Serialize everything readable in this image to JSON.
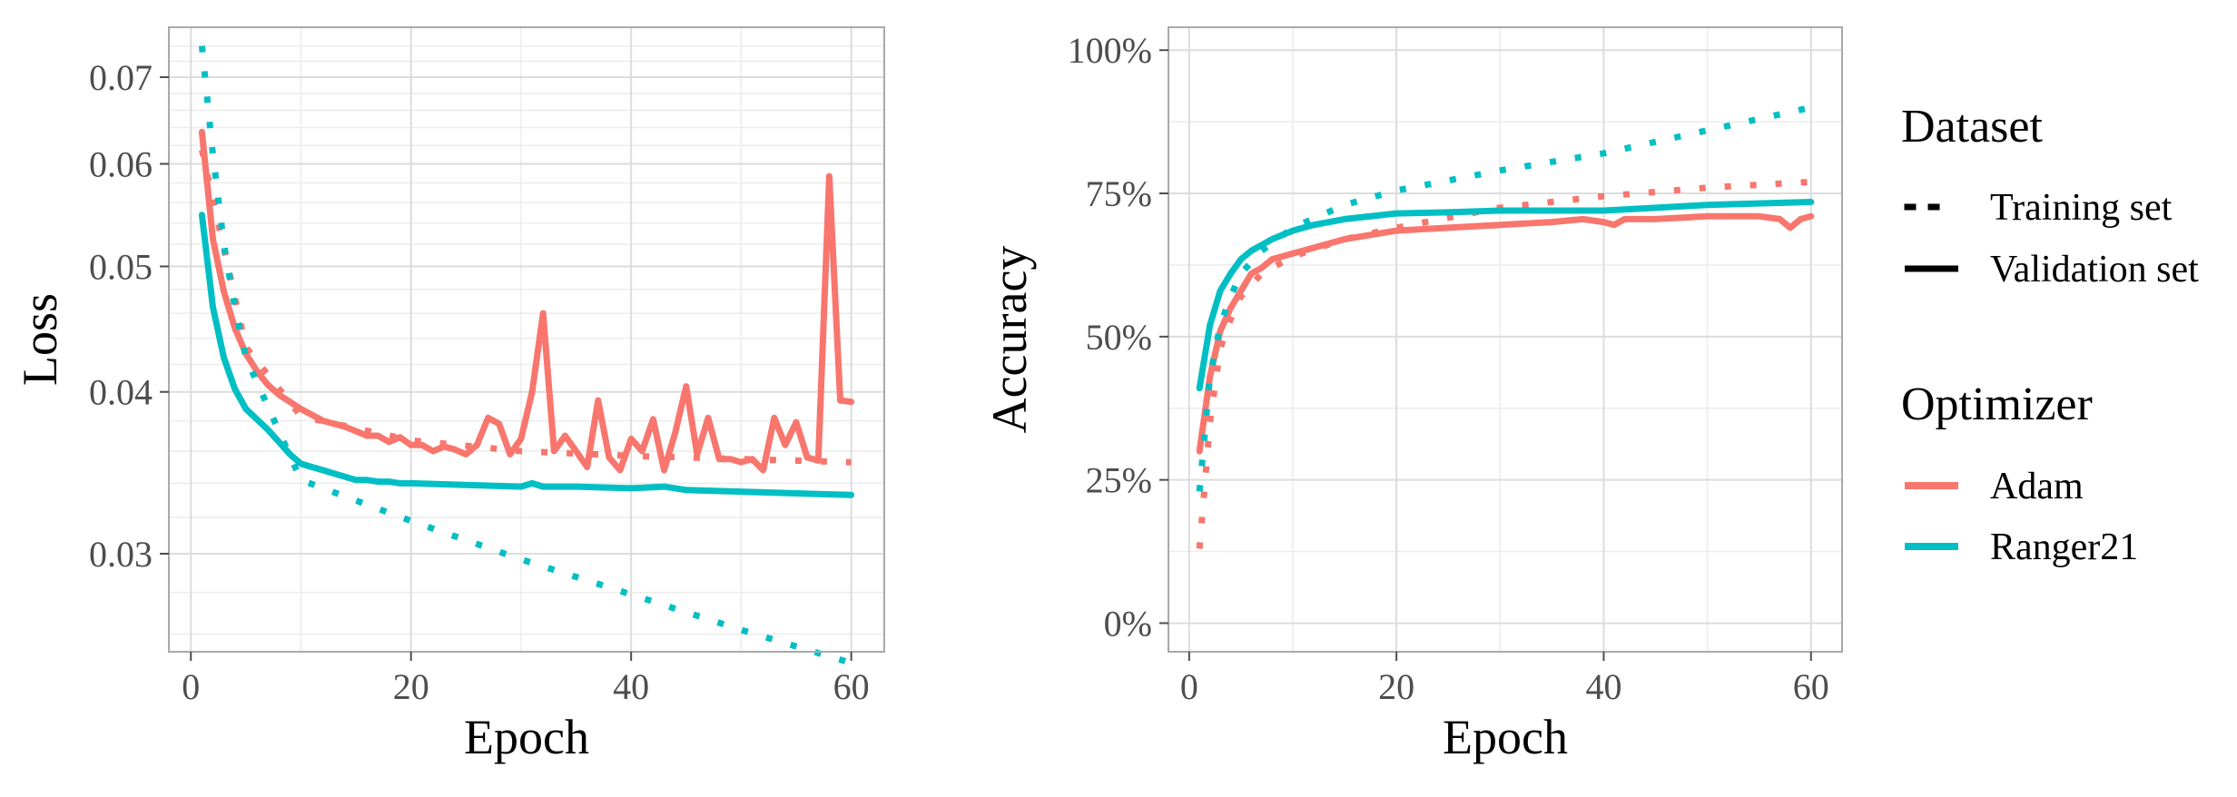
{
  "chart_data": [
    {
      "type": "line",
      "xlabel": "Epoch",
      "ylabel": "Loss",
      "y_scale": "log",
      "xlim": [
        -2,
        63
      ],
      "ylim": [
        0.0252,
        0.0765
      ],
      "x_ticks": [
        0,
        20,
        40,
        60
      ],
      "x_tick_labels": [
        "0",
        "20",
        "40",
        "60"
      ],
      "y_ticks": [
        0.03,
        0.04,
        0.05,
        0.06,
        0.07
      ],
      "y_tick_labels": [
        "0.03",
        "0.04",
        "0.05",
        "0.06",
        "0.07"
      ],
      "grid": true,
      "series": [
        {
          "name": "Adam",
          "dataset": "Training set",
          "x": [
            1,
            5,
            10,
            20,
            30,
            40,
            50,
            60
          ],
          "y": [
            0.0615,
            0.0433,
            0.0383,
            0.0367,
            0.036,
            0.0357,
            0.0355,
            0.0353
          ]
        },
        {
          "name": "Adam",
          "dataset": "Validation set",
          "x": [
            1,
            2,
            3,
            4,
            5,
            6,
            7,
            8,
            9,
            10,
            11,
            12,
            13,
            14,
            15,
            16,
            17,
            18,
            19,
            20,
            21,
            22,
            23,
            24,
            25,
            26,
            27,
            28,
            29,
            30,
            31,
            32,
            33,
            34,
            35,
            36,
            37,
            38,
            39,
            40,
            41,
            42,
            43,
            44,
            45,
            46,
            47,
            48,
            49,
            50,
            51,
            52,
            53,
            54,
            55,
            56,
            57,
            58,
            59,
            60
          ],
          "y": [
            0.0635,
            0.0525,
            0.0478,
            0.0448,
            0.0428,
            0.0415,
            0.0405,
            0.0398,
            0.0393,
            0.0388,
            0.0384,
            0.038,
            0.0378,
            0.0376,
            0.0373,
            0.037,
            0.037,
            0.0366,
            0.0369,
            0.0364,
            0.0364,
            0.036,
            0.0363,
            0.0361,
            0.0358,
            0.0364,
            0.0382,
            0.0378,
            0.0358,
            0.0368,
            0.04,
            0.046,
            0.036,
            0.037,
            0.036,
            0.035,
            0.0394,
            0.0356,
            0.0348,
            0.0368,
            0.036,
            0.0381,
            0.0348,
            0.0372,
            0.0404,
            0.0358,
            0.0382,
            0.0355,
            0.0355,
            0.0353,
            0.0355,
            0.0348,
            0.0382,
            0.0364,
            0.0379,
            0.0356,
            0.0354,
            0.0587,
            0.0394,
            0.0393
          ]
        },
        {
          "name": "Ranger21",
          "dataset": "Training set",
          "x": [
            1,
            2,
            3,
            4,
            5,
            10,
            20,
            30,
            40,
            50,
            60
          ],
          "y": [
            0.074,
            0.061,
            0.052,
            0.0465,
            0.0425,
            0.0342,
            0.0318,
            0.0297,
            0.0279,
            0.0262,
            0.0247
          ]
        },
        {
          "name": "Ranger21",
          "dataset": "Validation set",
          "x": [
            1,
            2,
            3,
            4,
            5,
            6,
            7,
            8,
            9,
            10,
            11,
            12,
            13,
            14,
            15,
            16,
            17,
            18,
            19,
            20,
            25,
            30,
            31,
            32,
            35,
            40,
            43,
            45,
            50,
            55,
            60
          ],
          "y": [
            0.0548,
            0.0465,
            0.0425,
            0.0402,
            0.0388,
            0.0381,
            0.0374,
            0.0366,
            0.0358,
            0.0352,
            0.035,
            0.0348,
            0.0346,
            0.0344,
            0.0342,
            0.0342,
            0.0341,
            0.0341,
            0.034,
            0.034,
            0.0339,
            0.0338,
            0.034,
            0.0338,
            0.0338,
            0.0337,
            0.0338,
            0.0336,
            0.0335,
            0.0334,
            0.0333
          ]
        }
      ]
    },
    {
      "type": "line",
      "xlabel": "Epoch",
      "ylabel": "Accuracy",
      "xlim": [
        -2,
        63
      ],
      "ylim": [
        -0.05,
        1.04
      ],
      "x_ticks": [
        0,
        20,
        40,
        60
      ],
      "x_tick_labels": [
        "0",
        "20",
        "40",
        "60"
      ],
      "y_ticks": [
        0,
        0.25,
        0.5,
        0.75,
        1.0
      ],
      "y_tick_labels": [
        "0%",
        "25%",
        "50%",
        "75%",
        "100%"
      ],
      "grid": true,
      "series": [
        {
          "name": "Adam",
          "dataset": "Training set",
          "x": [
            1,
            2,
            3,
            4,
            5,
            7,
            10,
            15,
            20,
            30,
            40,
            50,
            60
          ],
          "y": [
            0.13,
            0.35,
            0.48,
            0.53,
            0.57,
            0.61,
            0.64,
            0.67,
            0.69,
            0.725,
            0.745,
            0.76,
            0.77
          ]
        },
        {
          "name": "Adam",
          "dataset": "Validation set",
          "x": [
            1,
            2,
            3,
            4,
            5,
            6,
            7,
            8,
            10,
            12,
            15,
            20,
            25,
            30,
            35,
            38,
            40,
            41,
            42,
            45,
            50,
            55,
            57,
            58,
            59,
            60
          ],
          "y": [
            0.3,
            0.43,
            0.51,
            0.55,
            0.58,
            0.61,
            0.62,
            0.635,
            0.645,
            0.655,
            0.67,
            0.685,
            0.69,
            0.695,
            0.7,
            0.705,
            0.7,
            0.695,
            0.705,
            0.705,
            0.71,
            0.71,
            0.705,
            0.69,
            0.705,
            0.71
          ]
        },
        {
          "name": "Ranger21",
          "dataset": "Training set",
          "x": [
            1,
            2,
            3,
            4,
            5,
            7,
            10,
            15,
            20,
            30,
            40,
            50,
            60
          ],
          "y": [
            0.23,
            0.43,
            0.52,
            0.57,
            0.61,
            0.65,
            0.69,
            0.73,
            0.755,
            0.79,
            0.82,
            0.86,
            0.9
          ]
        },
        {
          "name": "Ranger21",
          "dataset": "Validation set",
          "x": [
            1,
            2,
            3,
            4,
            5,
            6,
            7,
            8,
            10,
            12,
            15,
            20,
            25,
            30,
            40,
            50,
            60
          ],
          "y": [
            0.41,
            0.52,
            0.58,
            0.61,
            0.635,
            0.65,
            0.66,
            0.67,
            0.685,
            0.695,
            0.705,
            0.715,
            0.717,
            0.72,
            0.72,
            0.73,
            0.735
          ]
        }
      ]
    }
  ],
  "legend": {
    "placement": "right",
    "dataset_title": "Dataset",
    "dataset_items": [
      {
        "label": "Training set",
        "linetype": "dotted"
      },
      {
        "label": "Validation set",
        "linetype": "solid"
      }
    ],
    "optimizer_title": "Optimizer",
    "optimizer_items": [
      {
        "label": "Adam",
        "color": "#F8766D"
      },
      {
        "label": "Ranger21",
        "color": "#00BFC4"
      }
    ]
  },
  "colors": {
    "Adam": "#F8766D",
    "Ranger21": "#00BFC4",
    "grid_major": "#dcdcdc",
    "grid_minor": "#ececec",
    "panel_border": "#a9a9a9"
  }
}
